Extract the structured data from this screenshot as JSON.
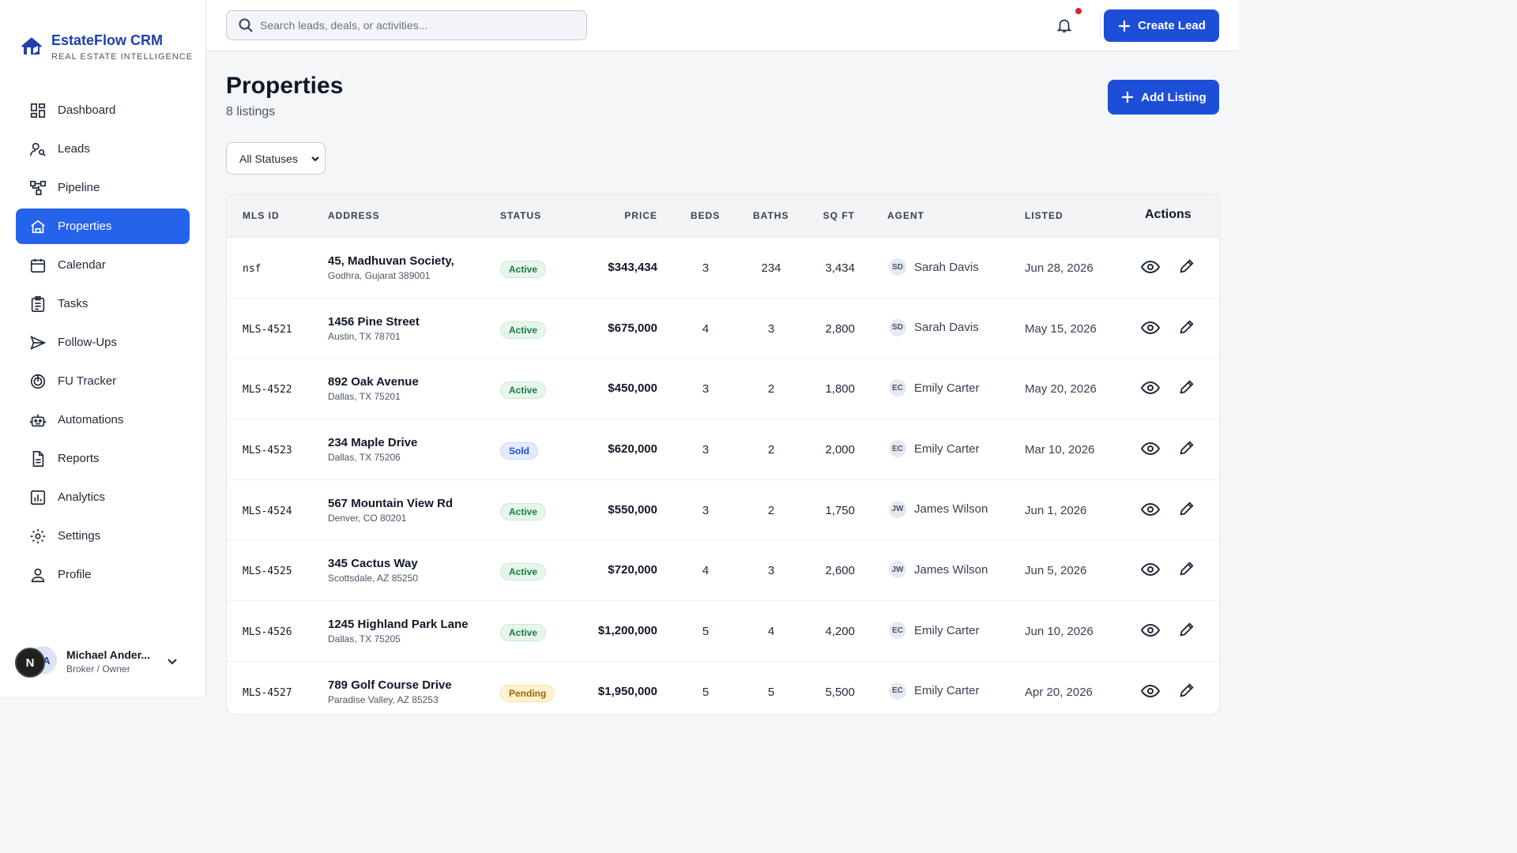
{
  "brand": {
    "name": "EstateFlow CRM",
    "tagline": "REAL ESTATE INTELLIGENCE"
  },
  "nav": [
    {
      "label": "Dashboard",
      "icon": "dashboard-icon"
    },
    {
      "label": "Leads",
      "icon": "leads-icon"
    },
    {
      "label": "Pipeline",
      "icon": "pipeline-icon"
    },
    {
      "label": "Properties",
      "icon": "properties-icon",
      "active": true
    },
    {
      "label": "Calendar",
      "icon": "calendar-icon"
    },
    {
      "label": "Tasks",
      "icon": "tasks-icon"
    },
    {
      "label": "Follow-Ups",
      "icon": "send-icon"
    },
    {
      "label": "FU Tracker",
      "icon": "tracker-icon"
    },
    {
      "label": "Automations",
      "icon": "robot-icon"
    },
    {
      "label": "Reports",
      "icon": "document-icon"
    },
    {
      "label": "Analytics",
      "icon": "chart-icon"
    },
    {
      "label": "Settings",
      "icon": "gear-icon"
    },
    {
      "label": "Profile",
      "icon": "user-icon"
    }
  ],
  "user": {
    "name": "Michael Ander...",
    "role": "Broker / Owner",
    "avatar_initial": "N",
    "avatar_back": "A"
  },
  "topbar": {
    "search_placeholder": "Search leads, deals, or activities...",
    "create_lead": "Create Lead"
  },
  "page": {
    "title": "Properties",
    "count": "8 listings",
    "add_listing": "Add Listing",
    "status_filter": "All Statuses"
  },
  "table": {
    "headers": {
      "mls": "MLS ID",
      "address": "ADDRESS",
      "status": "STATUS",
      "price": "PRICE",
      "beds": "BEDS",
      "baths": "BATHS",
      "sqft": "SQ FT",
      "agent": "AGENT",
      "listed": "LISTED",
      "actions": "Actions"
    },
    "rows": [
      {
        "mls": "nsf",
        "address": "45, Madhuvan Society,",
        "city": "Godhra, Gujarat 389001",
        "status": "Active",
        "price": "$343,434",
        "beds": "3",
        "baths": "234",
        "sqft": "3,434",
        "agent_initials": "SD",
        "agent": "Sarah Davis",
        "listed": "Jun 28, 2026"
      },
      {
        "mls": "MLS-4521",
        "address": "1456 Pine Street",
        "city": "Austin, TX 78701",
        "status": "Active",
        "price": "$675,000",
        "beds": "4",
        "baths": "3",
        "sqft": "2,800",
        "agent_initials": "SD",
        "agent": "Sarah Davis",
        "listed": "May 15, 2026"
      },
      {
        "mls": "MLS-4522",
        "address": "892 Oak Avenue",
        "city": "Dallas, TX 75201",
        "status": "Active",
        "price": "$450,000",
        "beds": "3",
        "baths": "2",
        "sqft": "1,800",
        "agent_initials": "EC",
        "agent": "Emily Carter",
        "listed": "May 20, 2026"
      },
      {
        "mls": "MLS-4523",
        "address": "234 Maple Drive",
        "city": "Dallas, TX 75206",
        "status": "Sold",
        "price": "$620,000",
        "beds": "3",
        "baths": "2",
        "sqft": "2,000",
        "agent_initials": "EC",
        "agent": "Emily Carter",
        "listed": "Mar 10, 2026"
      },
      {
        "mls": "MLS-4524",
        "address": "567 Mountain View Rd",
        "city": "Denver, CO 80201",
        "status": "Active",
        "price": "$550,000",
        "beds": "3",
        "baths": "2",
        "sqft": "1,750",
        "agent_initials": "JW",
        "agent": "James Wilson",
        "listed": "Jun 1, 2026"
      },
      {
        "mls": "MLS-4525",
        "address": "345 Cactus Way",
        "city": "Scottsdale, AZ 85250",
        "status": "Active",
        "price": "$720,000",
        "beds": "4",
        "baths": "3",
        "sqft": "2,600",
        "agent_initials": "JW",
        "agent": "James Wilson",
        "listed": "Jun 5, 2026"
      },
      {
        "mls": "MLS-4526",
        "address": "1245 Highland Park Lane",
        "city": "Dallas, TX 75205",
        "status": "Active",
        "price": "$1,200,000",
        "beds": "5",
        "baths": "4",
        "sqft": "4,200",
        "agent_initials": "EC",
        "agent": "Emily Carter",
        "listed": "Jun 10, 2026"
      },
      {
        "mls": "MLS-4527",
        "address": "789 Golf Course Drive",
        "city": "Paradise Valley, AZ 85253",
        "status": "Pending",
        "price": "$1,950,000",
        "beds": "5",
        "baths": "5",
        "sqft": "5,500",
        "agent_initials": "EC",
        "agent": "Emily Carter",
        "listed": "Apr 20, 2026"
      }
    ]
  },
  "colors": {
    "accent": "#2563eb",
    "button": "#1d4ed8",
    "notification_dot": "#dc2626"
  }
}
